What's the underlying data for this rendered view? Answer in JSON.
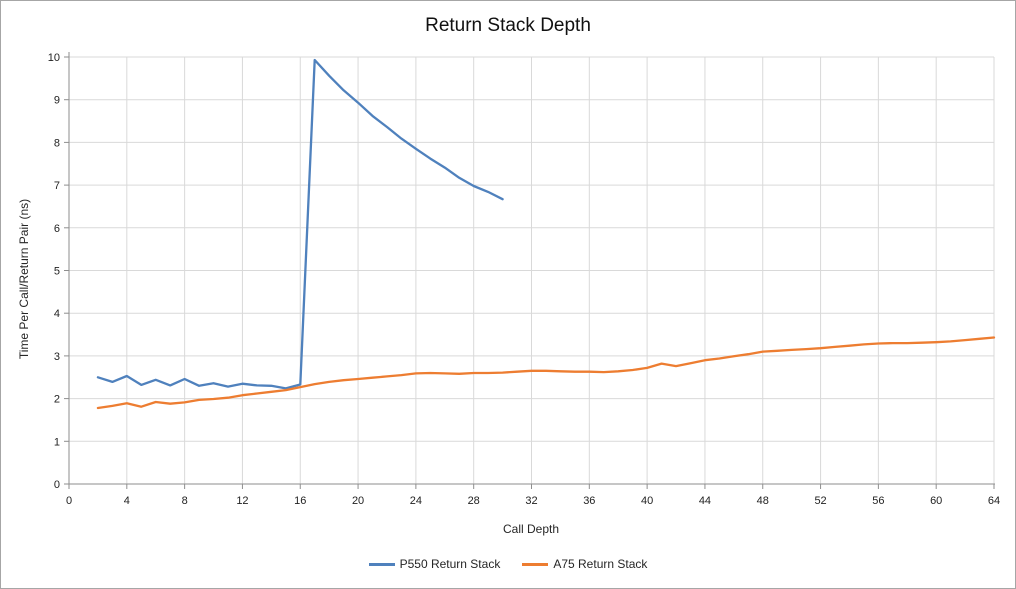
{
  "chart_data": {
    "type": "line",
    "title": "Return Stack Depth",
    "xlabel": "Call Depth",
    "ylabel": "Time Per Call/Return Pair (ns)",
    "xlim": [
      0,
      64
    ],
    "ylim": [
      0,
      10
    ],
    "x_ticks": [
      0,
      4,
      8,
      12,
      16,
      20,
      24,
      28,
      32,
      36,
      40,
      44,
      48,
      52,
      56,
      60,
      64
    ],
    "y_ticks": [
      0,
      1,
      2,
      3,
      4,
      5,
      6,
      7,
      8,
      9,
      10
    ],
    "grid": true,
    "legend_position": "bottom",
    "series": [
      {
        "name": "P550 Return Stack",
        "color": "#4F81BD",
        "x": [
          2,
          3,
          4,
          5,
          6,
          7,
          8,
          9,
          10,
          11,
          12,
          13,
          14,
          15,
          16,
          17,
          18,
          19,
          20,
          21,
          22,
          23,
          24,
          25,
          26,
          27,
          28,
          29,
          30
        ],
        "y": [
          2.5,
          2.39,
          2.53,
          2.32,
          2.44,
          2.31,
          2.46,
          2.3,
          2.36,
          2.28,
          2.35,
          2.31,
          2.3,
          2.24,
          2.33,
          9.93,
          9.56,
          9.22,
          8.93,
          8.62,
          8.36,
          8.09,
          7.85,
          7.62,
          7.41,
          7.17,
          6.98,
          6.84,
          6.67
        ]
      },
      {
        "name": "A75 Return Stack",
        "color": "#ED7D31",
        "x": [
          2,
          3,
          4,
          5,
          6,
          7,
          8,
          9,
          10,
          11,
          12,
          13,
          14,
          15,
          16,
          17,
          18,
          19,
          20,
          21,
          22,
          23,
          24,
          25,
          26,
          27,
          28,
          29,
          30,
          31,
          32,
          33,
          34,
          35,
          36,
          37,
          38,
          39,
          40,
          41,
          42,
          43,
          44,
          45,
          46,
          47,
          48,
          49,
          50,
          51,
          52,
          53,
          54,
          55,
          56,
          57,
          58,
          59,
          60,
          61,
          62,
          63,
          64
        ],
        "y": [
          1.78,
          1.83,
          1.89,
          1.81,
          1.92,
          1.88,
          1.91,
          1.97,
          1.99,
          2.02,
          2.08,
          2.12,
          2.16,
          2.2,
          2.27,
          2.34,
          2.39,
          2.43,
          2.46,
          2.49,
          2.52,
          2.55,
          2.59,
          2.6,
          2.59,
          2.58,
          2.6,
          2.6,
          2.61,
          2.63,
          2.65,
          2.65,
          2.64,
          2.63,
          2.63,
          2.62,
          2.64,
          2.67,
          2.72,
          2.82,
          2.76,
          2.83,
          2.9,
          2.94,
          2.99,
          3.04,
          3.1,
          3.12,
          3.14,
          3.16,
          3.18,
          3.21,
          3.24,
          3.27,
          3.29,
          3.3,
          3.3,
          3.31,
          3.32,
          3.34,
          3.37,
          3.4,
          3.43
        ]
      }
    ]
  }
}
